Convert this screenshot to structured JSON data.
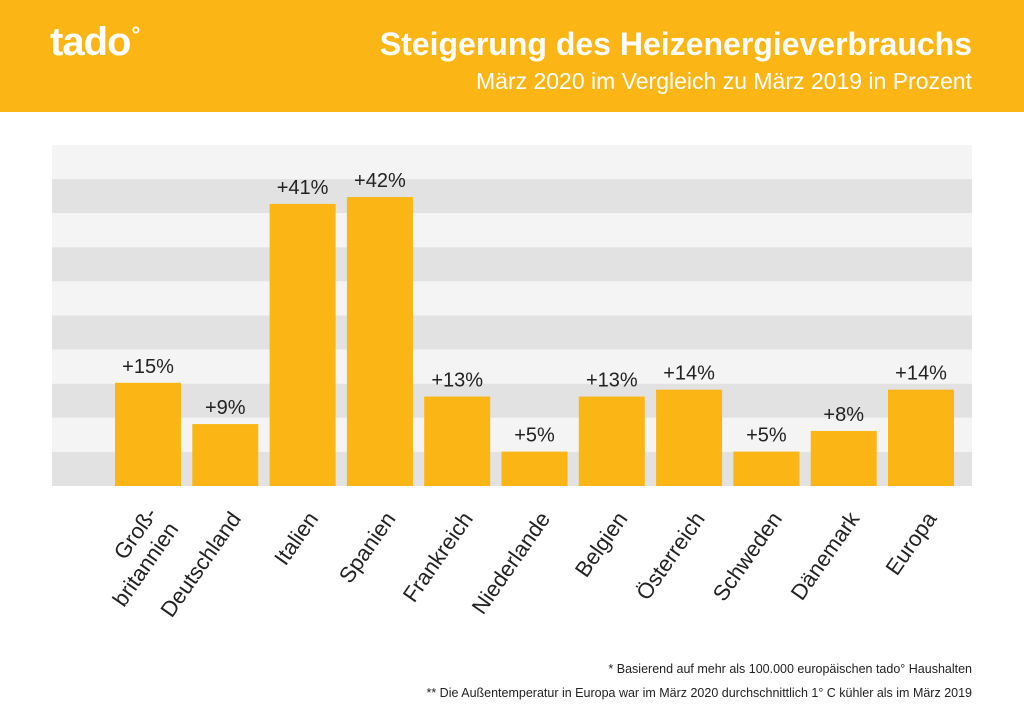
{
  "brand": {
    "logo_text": "tado",
    "logo_mark": "°"
  },
  "header": {
    "title": "Steigerung des Heizenergieverbrauchs",
    "subtitle": "März 2020 im Vergleich zu März 2019 in Prozent"
  },
  "colors": {
    "accent": "#fbb616",
    "stripe_dark": "#e2e2e2",
    "stripe_light": "#f4f4f4",
    "text": "#222222"
  },
  "chart_data": {
    "type": "bar",
    "categories": [
      [
        "Groß-",
        "britannien"
      ],
      [
        "Deutschland"
      ],
      [
        "Italien"
      ],
      [
        "Spanien"
      ],
      [
        "Frankreich"
      ],
      [
        "Niederlande"
      ],
      [
        "Belgien"
      ],
      [
        "Österreich"
      ],
      [
        "Schweden"
      ],
      [
        "Dänemark"
      ],
      [
        "Europa"
      ]
    ],
    "values": [
      15,
      9,
      41,
      42,
      13,
      5,
      13,
      14,
      5,
      8,
      14
    ],
    "data_labels": [
      "+15%",
      "+9%",
      "+41%",
      "+42%",
      "+13%",
      "+5%",
      "+13%",
      "+14%",
      "+5%",
      "+8%",
      "+14%"
    ],
    "ylim": [
      0,
      50
    ],
    "grid": "alternating horizontal bands",
    "legend": "none"
  },
  "footnotes": [
    "* Basierend auf mehr als 100.000 europäischen tado° Haushalten",
    "** Die Außentemperatur in Europa war im März 2020 durchschnittlich 1° C kühler als im März 2019"
  ]
}
